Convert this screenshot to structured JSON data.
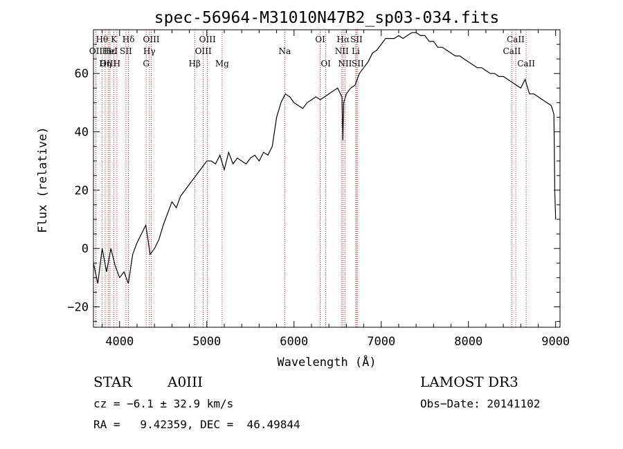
{
  "chart_data": {
    "type": "line",
    "title": "spec-56964-M31010N47B2_sp03-034.fits",
    "xlabel": "Wavelength (Å)",
    "ylabel": "Flux (relative)",
    "xlim": [
      3700,
      9050
    ],
    "ylim": [
      -27,
      75
    ],
    "x_ticks": [
      4000,
      5000,
      6000,
      7000,
      8000,
      9000
    ],
    "y_ticks": [
      -20,
      0,
      20,
      40,
      60
    ],
    "series": [
      {
        "name": "flux",
        "x": [
          3700,
          3750,
          3800,
          3850,
          3900,
          3950,
          4000,
          4050,
          4100,
          4150,
          4200,
          4250,
          4300,
          4350,
          4400,
          4450,
          4500,
          4550,
          4600,
          4650,
          4700,
          4750,
          4800,
          4850,
          4900,
          4950,
          5000,
          5050,
          5100,
          5150,
          5200,
          5250,
          5300,
          5350,
          5400,
          5450,
          5500,
          5550,
          5600,
          5650,
          5700,
          5750,
          5800,
          5850,
          5900,
          5950,
          6000,
          6050,
          6100,
          6150,
          6200,
          6250,
          6300,
          6350,
          6400,
          6450,
          6500,
          6550,
          6560,
          6570,
          6600,
          6650,
          6700,
          6750,
          6800,
          6850,
          6900,
          6950,
          7000,
          7050,
          7100,
          7150,
          7200,
          7250,
          7300,
          7350,
          7400,
          7450,
          7500,
          7550,
          7600,
          7650,
          7700,
          7750,
          7800,
          7850,
          7900,
          7950,
          8000,
          8050,
          8100,
          8150,
          8200,
          8250,
          8300,
          8350,
          8400,
          8450,
          8500,
          8550,
          8600,
          8650,
          8700,
          8750,
          8800,
          8850,
          8900,
          8950,
          8960,
          8980,
          8990,
          9000
        ],
        "y": [
          -5,
          -12,
          0,
          -8,
          0,
          -6,
          -10,
          -8,
          -12,
          -2,
          2,
          5,
          8,
          -2,
          0,
          3,
          8,
          12,
          16,
          14,
          18,
          20,
          22,
          24,
          26,
          28,
          30,
          30,
          29,
          32,
          27,
          33,
          29,
          31,
          30,
          29,
          31,
          32,
          30,
          33,
          32,
          35,
          45,
          50,
          53,
          52,
          50,
          49,
          48,
          50,
          51,
          52,
          51,
          52,
          53,
          54,
          55,
          52,
          37,
          50,
          53,
          55,
          56,
          60,
          62,
          64,
          67,
          68,
          70,
          72,
          72,
          72,
          73,
          72,
          73,
          74,
          74,
          73,
          73,
          71,
          71,
          69,
          69,
          68,
          67,
          66,
          66,
          65,
          64,
          63,
          62,
          62,
          61,
          60,
          60,
          59,
          59,
          58,
          57,
          56,
          55,
          58,
          53,
          53,
          52,
          51,
          50,
          49,
          48,
          46,
          20,
          10
        ]
      }
    ],
    "spectral_lines": [
      {
        "name": "Hθ",
        "x": 3798,
        "row": 1
      },
      {
        "name": "OII",
        "x": 3727,
        "row": 2
      },
      {
        "name": "OIII",
        "x": 3869,
        "row": 3
      },
      {
        "name": "K",
        "x": 3934,
        "row": 1
      },
      {
        "name": "Hε",
        "x": 3889,
        "row": 2
      },
      {
        "name": "Hη",
        "x": 3835,
        "row": 3
      },
      {
        "name": "HeI",
        "x": 3889,
        "row": 2
      },
      {
        "name": "H",
        "x": 3969,
        "row": 3
      },
      {
        "name": "Hδ",
        "x": 4102,
        "row": 1
      },
      {
        "name": "SII",
        "x": 4072,
        "row": 2
      },
      {
        "name": "OIII",
        "x": 4363,
        "row": 1
      },
      {
        "name": "Hγ",
        "x": 4341,
        "row": 2
      },
      {
        "name": "G",
        "x": 4305,
        "row": 3
      },
      {
        "name": "Hβ",
        "x": 4861,
        "row": 3
      },
      {
        "name": "OIII",
        "x": 4959,
        "row": 2
      },
      {
        "name": "OIII",
        "x": 5007,
        "row": 1
      },
      {
        "name": "Mg",
        "x": 5175,
        "row": 3
      },
      {
        "name": "Na",
        "x": 5893,
        "row": 2
      },
      {
        "name": "OI",
        "x": 6300,
        "row": 1
      },
      {
        "name": "OI",
        "x": 6364,
        "row": 3
      },
      {
        "name": "Hα",
        "x": 6563,
        "row": 1
      },
      {
        "name": "NII",
        "x": 6548,
        "row": 2
      },
      {
        "name": "NII",
        "x": 6584,
        "row": 3
      },
      {
        "name": "SII",
        "x": 6716,
        "row": 1
      },
      {
        "name": "Li",
        "x": 6708,
        "row": 2
      },
      {
        "name": "SII",
        "x": 6731,
        "row": 3
      },
      {
        "name": "CaII",
        "x": 8542,
        "row": 1
      },
      {
        "name": "CaII",
        "x": 8498,
        "row": 2
      },
      {
        "name": "CaII",
        "x": 8662,
        "row": 3
      }
    ]
  },
  "info": {
    "object_class": "STAR",
    "subclass": "A0III",
    "survey": "LAMOST DR3",
    "redshift": "cz = −6.1 ± 32.9 km/s",
    "obs_date": "Obs−Date: 20141102",
    "coords": "RA =   9.42359, DEC =  46.49844"
  }
}
